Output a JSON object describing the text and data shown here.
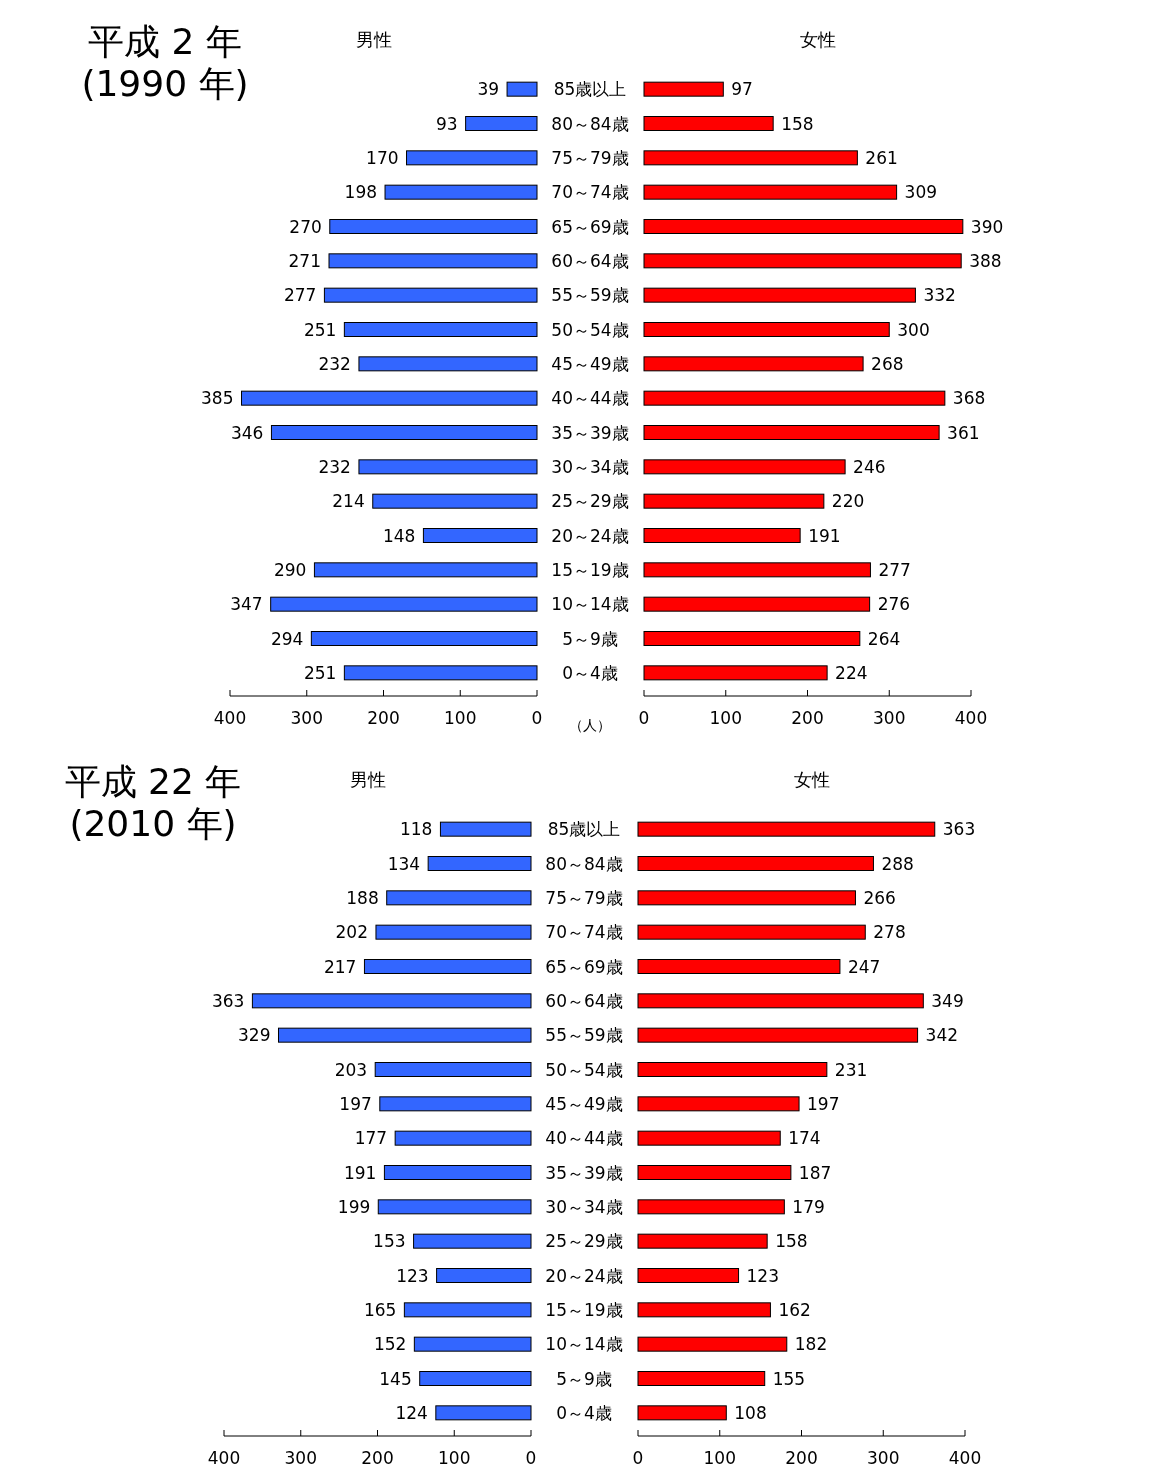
{
  "chart_data": [
    {
      "type": "bar",
      "orientation": "horizontal",
      "title": "平成 2 年",
      "subtitle": "(1990 年)",
      "annotations": [
        "（人）"
      ],
      "categories": [
        "85歳以上",
        "80～84歳",
        "75～79歳",
        "70～74歳",
        "65～69歳",
        "60～64歳",
        "55～59歳",
        "50～54歳",
        "45～49歳",
        "40～44歳",
        "35～39歳",
        "30～34歳",
        "25～29歳",
        "20～24歳",
        "15～19歳",
        "10～14歳",
        "5～9歳",
        "0～4歳"
      ],
      "xlim": [
        400,
        0
      ],
      "xticks": [
        400,
        300,
        200,
        100,
        0
      ],
      "data_labels": true,
      "series": [
        {
          "name": "男性",
          "color": "#3366ff",
          "values": [
            39,
            93,
            170,
            198,
            270,
            271,
            277,
            251,
            232,
            385,
            346,
            232,
            214,
            148,
            290,
            347,
            294,
            251
          ]
        }
      ]
    },
    {
      "type": "bar",
      "orientation": "horizontal",
      "tick_labels": "x",
      "categories": [
        "85歳以上",
        "80～84歳",
        "75～79歳",
        "70～74歳",
        "65～69歳",
        "60～64歳",
        "55～59歳",
        "50～54歳",
        "45～49歳",
        "40～44歳",
        "35～39歳",
        "30～34歳",
        "25～29歳",
        "20～24歳",
        "15～19歳",
        "10～14歳",
        "5～9歳",
        "0～4歳"
      ],
      "xlim": [
        0,
        400
      ],
      "xticks": [
        0,
        100,
        200,
        300,
        400
      ],
      "data_labels": true,
      "series": [
        {
          "name": "女性",
          "color": "#ff0000",
          "values": [
            97,
            158,
            261,
            309,
            390,
            388,
            332,
            300,
            268,
            368,
            361,
            246,
            220,
            191,
            277,
            276,
            264,
            224
          ]
        }
      ]
    },
    {
      "type": "bar",
      "orientation": "horizontal",
      "title": "平成 22 年",
      "subtitle": "(2010 年)",
      "categories": [
        "85歳以上",
        "80～84歳",
        "75～79歳",
        "70～74歳",
        "65～69歳",
        "60～64歳",
        "55～59歳",
        "50～54歳",
        "45～49歳",
        "40～44歳",
        "35～39歳",
        "30～34歳",
        "25～29歳",
        "20～24歳",
        "15～19歳",
        "10～14歳",
        "5～9歳",
        "0～4歳"
      ],
      "xlim": [
        400,
        0
      ],
      "xticks": [
        400,
        300,
        200,
        100,
        0
      ],
      "data_labels": true,
      "series": [
        {
          "name": "男性",
          "color": "#3366ff",
          "values": [
            118,
            134,
            188,
            202,
            217,
            363,
            329,
            203,
            197,
            177,
            191,
            199,
            153,
            123,
            165,
            152,
            145,
            124
          ]
        }
      ]
    },
    {
      "type": "bar",
      "orientation": "horizontal",
      "tick_labels": "x",
      "categories": [
        "85歳以上",
        "80～84歳",
        "75～79歳",
        "70～74歳",
        "65～69歳",
        "60～64歳",
        "55～59歳",
        "50～54歳",
        "45～49歳",
        "40～44歳",
        "35～39歳",
        "30～34歳",
        "25～29歳",
        "20～24歳",
        "15～19歳",
        "10～14歳",
        "5～9歳",
        "0～4歳"
      ],
      "xlim": [
        0,
        400
      ],
      "xticks": [
        0,
        100,
        200,
        300,
        400
      ],
      "data_labels": true,
      "series": [
        {
          "name": "女性",
          "color": "#ff0000",
          "values": [
            363,
            288,
            266,
            278,
            247,
            349,
            342,
            231,
            197,
            174,
            187,
            179,
            158,
            123,
            162,
            182,
            155,
            108
          ]
        }
      ]
    }
  ]
}
